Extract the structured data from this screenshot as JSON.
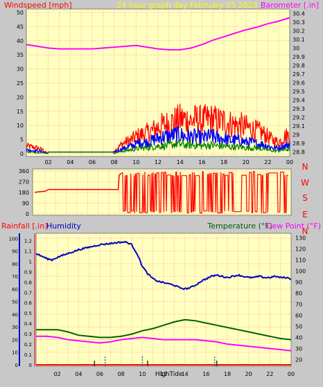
{
  "colors": {
    "background": "#c8c8c8",
    "plot_bg": "#ffffc0",
    "grid": "#ffa0a0",
    "wind": "#ff0000",
    "gust": "#ff0000",
    "avg": "#0000ff",
    "low": "#008000",
    "barometer": "#ff00ff",
    "direction": "#ff0000",
    "humidity": "#0000c0",
    "temperature": "#006000",
    "dewpoint": "#ff00ff",
    "rain_label": "#ff0000",
    "hour_tick": "#000080",
    "title": "#ffff00"
  },
  "header": {
    "title": "24 hour graph day   February 05 2023"
  },
  "chart_data": [
    {
      "id": "wind-barometer",
      "type": "line",
      "left_label": "Windspeed [mph]",
      "right_label": "Barometer [.in]",
      "x_ticks": [
        "02",
        "04",
        "06",
        "08",
        "10",
        "12",
        "14",
        "16",
        "18",
        "20",
        "22",
        "00"
      ],
      "x_range": [
        0,
        24
      ],
      "y_left_ticks": [
        "0",
        "5",
        "10",
        "15",
        "20",
        "25",
        "30",
        "35",
        "40",
        "45",
        "50"
      ],
      "y_left_range": [
        0,
        50
      ],
      "y_right_ticks": [
        "28.8",
        "28.9",
        "29",
        "29.1",
        "29.2",
        "29.3",
        "29.4",
        "29.5",
        "29.6",
        "29.7",
        "29.8",
        "29.9",
        "30",
        "30.1",
        "30.2",
        "30.3",
        "30.4"
      ],
      "y_right_range": [
        28.75,
        30.45
      ],
      "barometer": {
        "x": [
          0,
          1,
          2,
          3,
          4,
          5,
          6,
          7,
          8,
          9,
          10,
          11,
          12,
          13,
          14,
          15,
          16,
          17,
          18,
          19,
          20,
          21,
          22,
          23,
          24
        ],
        "y": [
          30.04,
          30.02,
          30.0,
          29.99,
          29.99,
          29.99,
          29.99,
          30.0,
          30.01,
          30.02,
          30.03,
          30.01,
          29.99,
          29.98,
          29.98,
          30.0,
          30.04,
          30.09,
          30.13,
          30.17,
          30.21,
          30.24,
          30.28,
          30.31,
          30.35
        ]
      },
      "wind_envelope": {
        "x": [
          0,
          1,
          1.5,
          2,
          7,
          7.9,
          8.5,
          9,
          9.5,
          10,
          10.5,
          11,
          11.5,
          12,
          12.5,
          13,
          13.5,
          14,
          14.5,
          15,
          15.5,
          16,
          16.5,
          17,
          17.5,
          18,
          18.5,
          19,
          19.5,
          20,
          20.5,
          21,
          21.5,
          22,
          22.5,
          23,
          23.5,
          24
        ],
        "gust_high": [
          4,
          3,
          2,
          0,
          0,
          1,
          4,
          6,
          7,
          9,
          10,
          11,
          12,
          14,
          15,
          16,
          17,
          18,
          18,
          17,
          18,
          17,
          18,
          18,
          17,
          17,
          16,
          15,
          15,
          14,
          13,
          12,
          11,
          9,
          7,
          6,
          9,
          10
        ],
        "avg_high": [
          2,
          1.5,
          1,
          0,
          0,
          0.5,
          2,
          3,
          4,
          5,
          6,
          6,
          7,
          8,
          9,
          9,
          10,
          10,
          9,
          9,
          9,
          8,
          9,
          9,
          8,
          8,
          7,
          7,
          7,
          6,
          6,
          5,
          5,
          4,
          3,
          3,
          4,
          5
        ],
        "low_high": [
          1,
          0.5,
          0.5,
          0,
          0,
          0,
          1,
          1.5,
          2,
          2.5,
          3,
          3,
          3.5,
          4,
          4,
          4.5,
          5,
          5,
          4.5,
          4.5,
          4.5,
          4,
          4.5,
          4.5,
          4,
          4,
          3.5,
          3.5,
          3.5,
          3,
          3,
          3,
          2.5,
          2,
          1.5,
          1.5,
          2,
          2.5
        ],
        "calm_value": 0
      }
    },
    {
      "id": "wind-direction",
      "type": "line",
      "left_ticks": [
        "0",
        "90",
        "180",
        "270",
        "360"
      ],
      "right_labels": [
        "N",
        "W",
        "S",
        "E",
        "N"
      ],
      "y_range": [
        0,
        360
      ],
      "x_range": [
        0,
        24
      ],
      "direction": {
        "x": [
          0,
          0.3,
          1,
          1.3,
          7.9,
          8.0,
          8.2
        ],
        "y": [
          180,
          185,
          190,
          205,
          205,
          325,
          340
        ]
      }
    },
    {
      "id": "rain-humidity-temp",
      "type": "line",
      "left_label_1": "Rainfall [.in]",
      "left_label_2": "Humidity",
      "right_label_1": "Temperature (°F)",
      "right_label_2": "Dew Point (°F)",
      "x_ticks": [
        "02",
        "04",
        "06",
        "08",
        "10",
        "12",
        "14",
        "16",
        "18",
        "20",
        "22",
        "00"
      ],
      "x_range": [
        0,
        24
      ],
      "humidity_ticks": [
        "0",
        "10",
        "20",
        "30",
        "40",
        "50",
        "60",
        "70",
        "80",
        "90",
        "100"
      ],
      "rain_ticks": [
        "0",
        "0.1",
        "0.2",
        "0.3",
        "0.4",
        "0.5",
        "0.6",
        "0.7",
        "0.8",
        "0.9",
        "1",
        "1.1",
        "1.2"
      ],
      "temp_ticks": [
        "20",
        "30",
        "40",
        "50",
        "60",
        "70",
        "80",
        "90",
        "100",
        "110",
        "120",
        "130"
      ],
      "temp_range": [
        14,
        134
      ],
      "humidity_range": [
        0,
        104
      ],
      "rain_range": [
        0,
        1.25
      ],
      "humidity": {
        "x": [
          0,
          0.5,
          1,
          1.5,
          2,
          3,
          4,
          5,
          6,
          7,
          8,
          8.5,
          9,
          9.5,
          10,
          10.5,
          11,
          11.5,
          12,
          12.5,
          13,
          13.5,
          14,
          14.5,
          15,
          15.5,
          16,
          16.5,
          17,
          17.5,
          18,
          18.5,
          19,
          19.5,
          20,
          20.5,
          21,
          21.5,
          22,
          22.5,
          23,
          23.5,
          24
        ],
        "y": [
          88,
          86,
          84,
          83,
          85,
          88,
          91,
          93,
          95,
          96,
          97,
          97,
          95,
          88,
          78,
          72,
          68,
          66,
          65,
          64,
          63,
          61,
          60,
          61,
          63,
          66,
          68,
          70,
          71,
          70,
          69,
          70,
          71,
          70,
          69,
          69,
          70,
          69,
          69,
          70,
          69,
          69,
          68
        ]
      },
      "temperature": {
        "x": [
          0,
          1,
          2,
          3,
          4,
          5,
          6,
          7,
          8,
          9,
          10,
          11,
          12,
          13,
          14,
          15,
          16,
          17,
          18,
          19,
          20,
          21,
          22,
          23,
          24
        ],
        "y": [
          47,
          47,
          47,
          45,
          42,
          41,
          40,
          40,
          41,
          43,
          46,
          48,
          51,
          54,
          56,
          55,
          53,
          51,
          49,
          47,
          45,
          43,
          41,
          39,
          38
        ]
      },
      "dewpoint": {
        "x": [
          0,
          1,
          2,
          3,
          4,
          5,
          6,
          7,
          8,
          9,
          10,
          11,
          12,
          13,
          14,
          15,
          16,
          17,
          18,
          19,
          20,
          21,
          22,
          23,
          24
        ],
        "y": [
          41,
          41,
          40,
          38,
          37,
          36,
          35,
          36,
          38,
          39,
          40,
          39,
          38,
          38,
          38,
          38,
          37,
          36,
          34,
          33,
          32,
          31,
          30,
          29,
          28
        ]
      },
      "rain_total": 0,
      "markers": {
        "dark_ticks_x": [
          5.5,
          10.5,
          17
        ],
        "teal_ticks_x": [
          6.5,
          10,
          16.8
        ]
      },
      "event_label": "HighTide",
      "event_x": 12.5
    }
  ]
}
